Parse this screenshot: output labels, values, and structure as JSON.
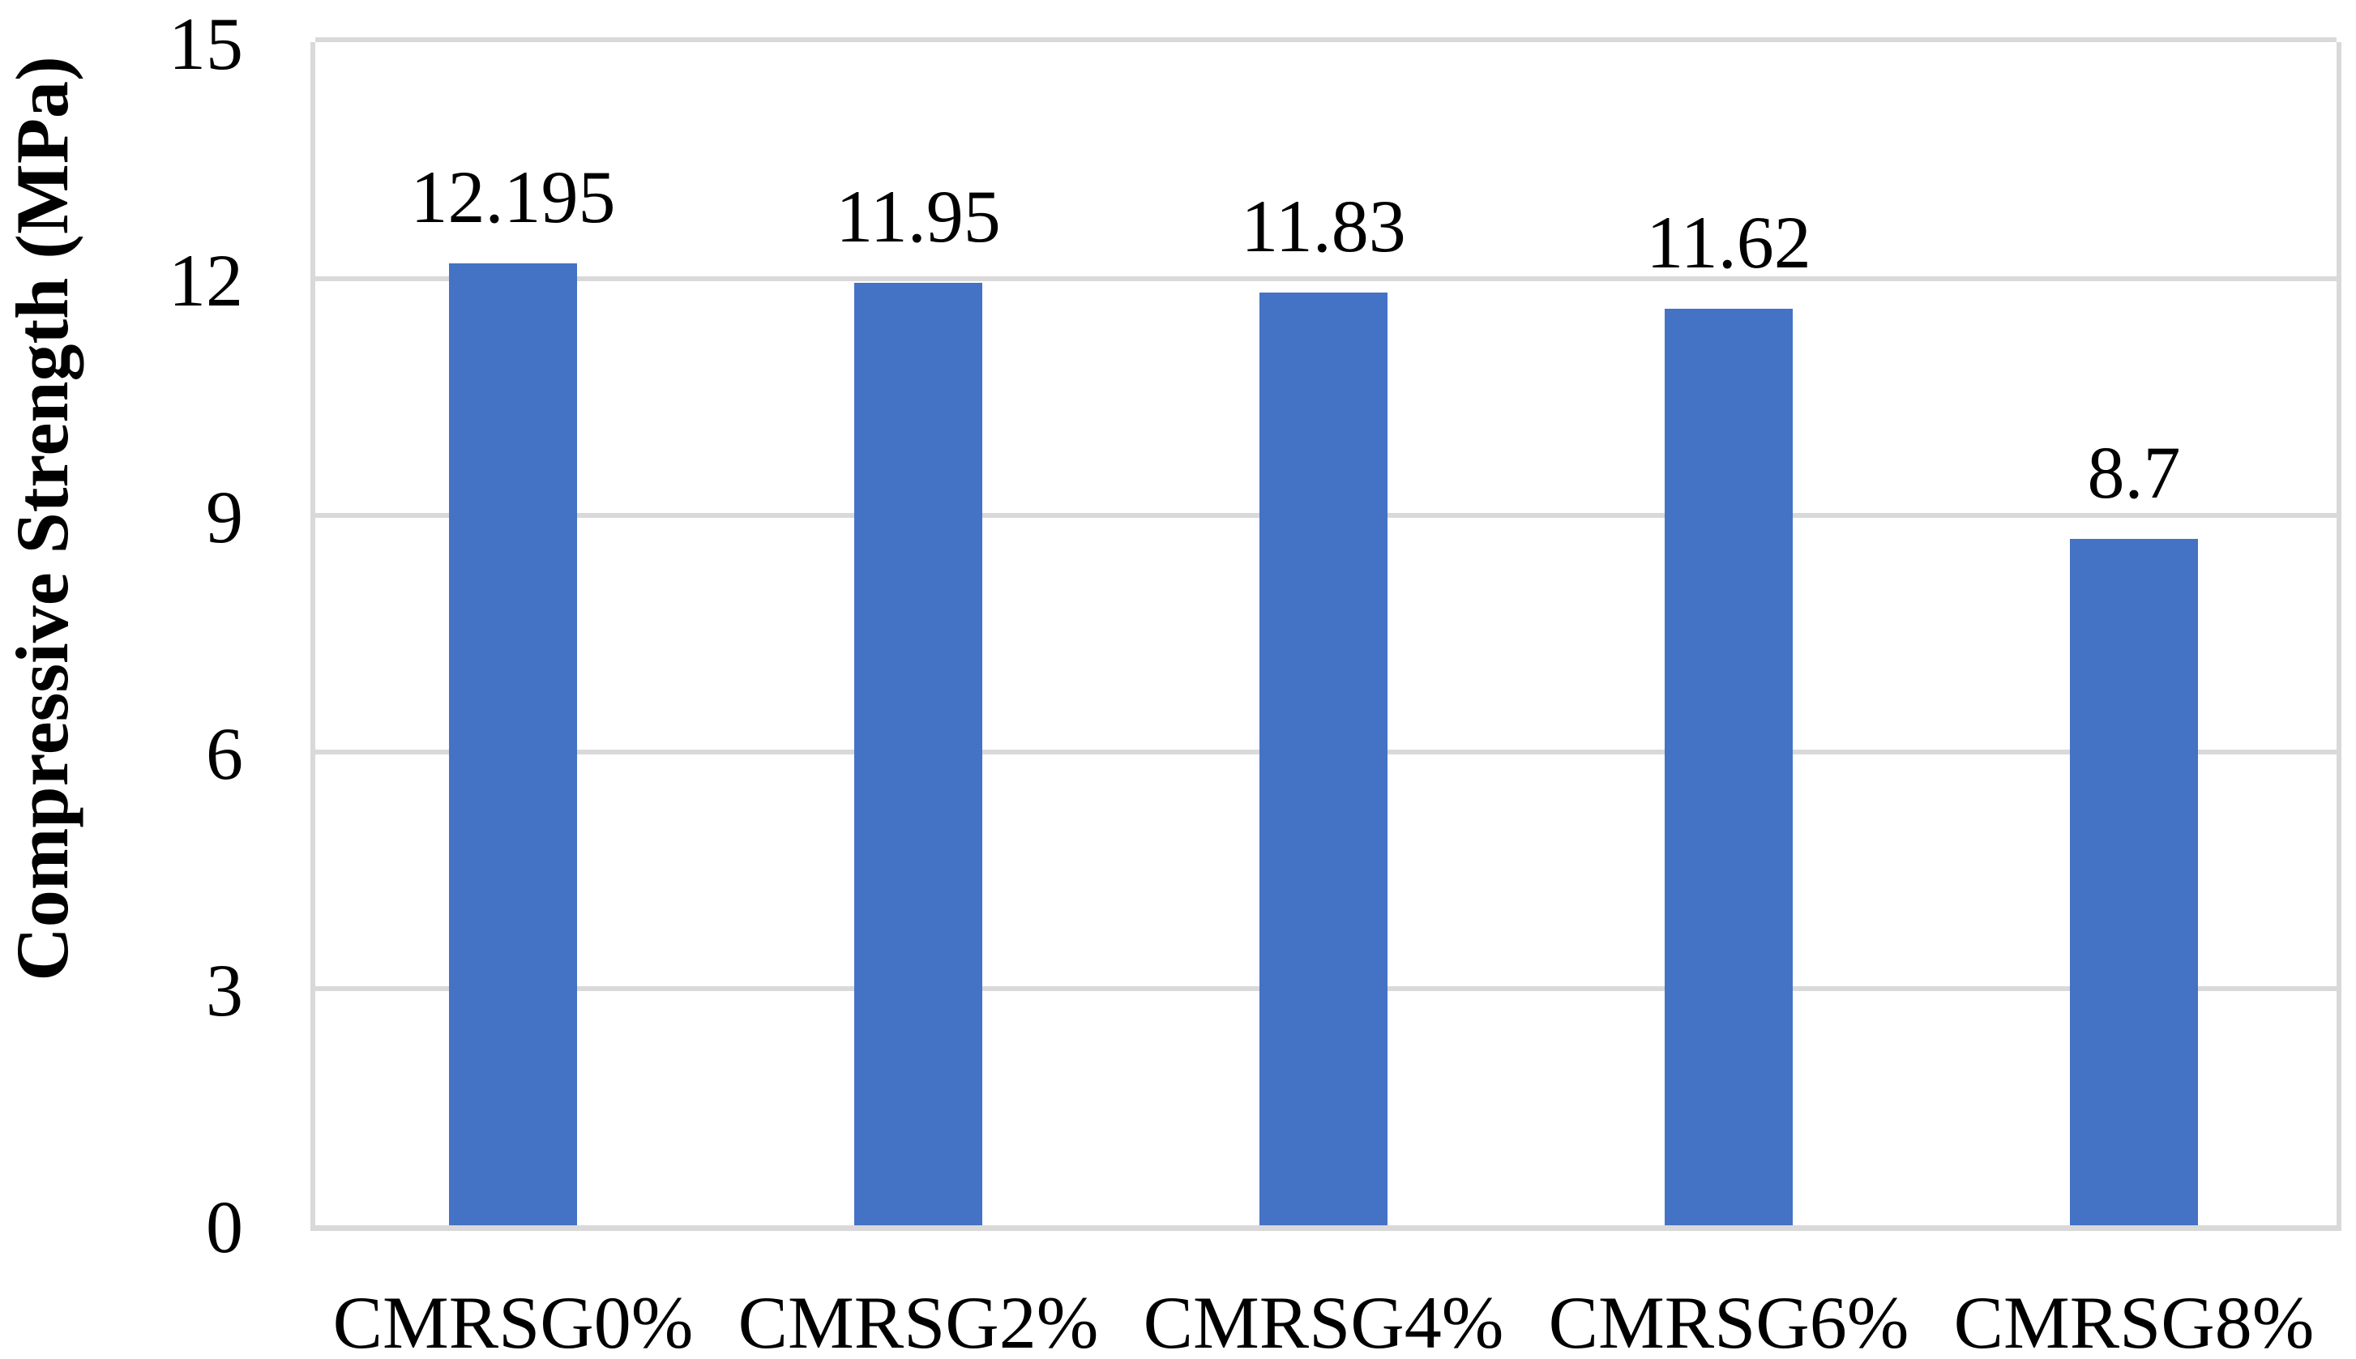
{
  "chart_data": {
    "type": "bar",
    "categories": [
      "CMRSG0%",
      "CMRSG2%",
      "CMRSG4%",
      "CMRSG6%",
      "CMRSG8%"
    ],
    "values": [
      12.195,
      11.95,
      11.83,
      11.62,
      8.7
    ],
    "data_labels": [
      "12.195",
      "11.95",
      "11.83",
      "11.62",
      "8.7"
    ],
    "title": "",
    "xlabel": "",
    "ylabel": "Compressive Strength (MPa)",
    "ylim": [
      0,
      15
    ],
    "yticks": [
      0,
      3,
      6,
      9,
      12,
      15
    ],
    "grid": "horizontal gridlines at each y tick",
    "legend_position": "none",
    "bar_color": "#4472C4",
    "grid_color": "#D9D9D9",
    "text_color": "#000000",
    "background_color": "#FFFFFF"
  }
}
